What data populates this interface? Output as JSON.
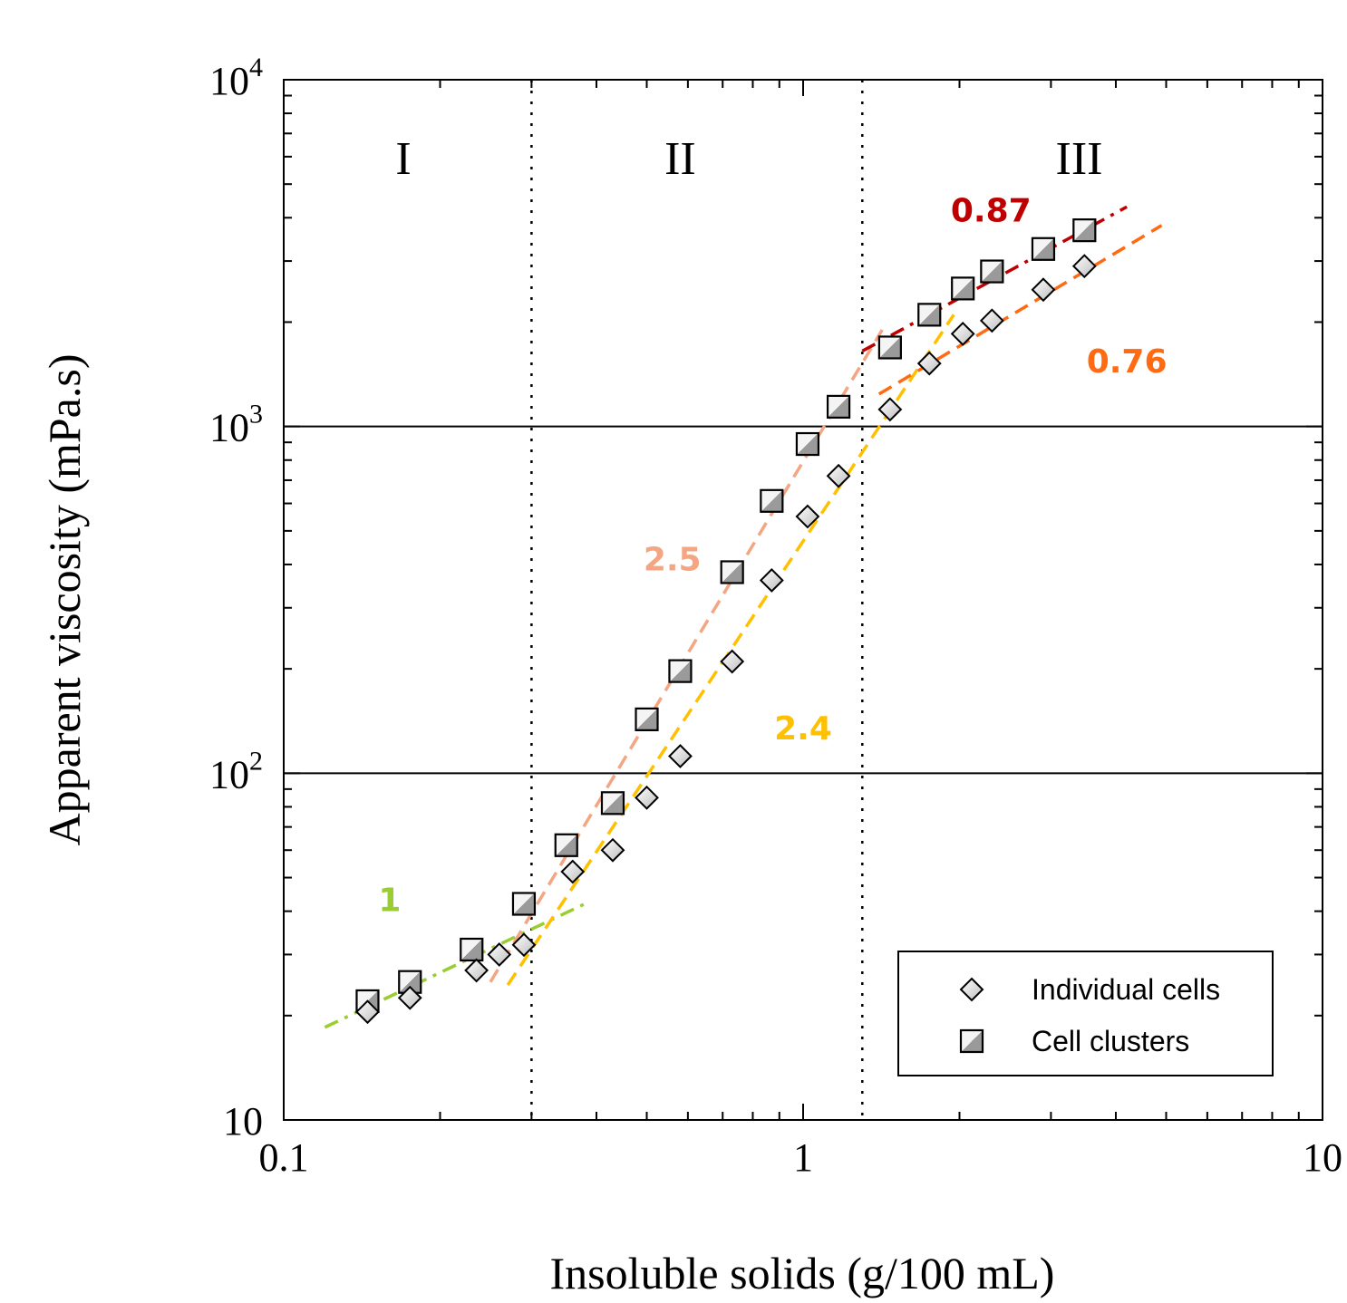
{
  "chart_data": {
    "type": "scatter",
    "x_scale": "log",
    "y_scale": "log",
    "xlim": [
      0.1,
      10
    ],
    "ylim": [
      10,
      10000
    ],
    "xlabel": "Insoluble solids (g/100 mL)",
    "ylabel": "Apparent viscosity (mPa.s)",
    "x_ticks": [
      {
        "value": 0.1,
        "label": "0.1"
      },
      {
        "value": 1,
        "label": "1"
      },
      {
        "value": 10,
        "label": "10"
      }
    ],
    "y_ticks": [
      {
        "value": 10,
        "label": "10",
        "exp": ""
      },
      {
        "value": 100,
        "label": "10",
        "exp": "2"
      },
      {
        "value": 1000,
        "label": "10",
        "exp": "3"
      },
      {
        "value": 10000,
        "label": "10",
        "exp": "4"
      }
    ],
    "gridlines_y": [
      100,
      1000
    ],
    "region_boundaries_x": [
      0.3,
      1.3
    ],
    "regions": [
      {
        "label": "I",
        "x": 0.17
      },
      {
        "label": "II",
        "x": 0.58
      },
      {
        "label": "III",
        "x": 3.4
      }
    ],
    "legend_position": "bottom-right",
    "series": [
      {
        "name": "Individual cells",
        "marker": "diamond",
        "points": [
          [
            0.145,
            20.5
          ],
          [
            0.175,
            22.5
          ],
          [
            0.235,
            27
          ],
          [
            0.26,
            30
          ],
          [
            0.29,
            32
          ],
          [
            0.36,
            52
          ],
          [
            0.43,
            60
          ],
          [
            0.5,
            85
          ],
          [
            0.58,
            112
          ],
          [
            0.73,
            210
          ],
          [
            0.87,
            360
          ],
          [
            1.02,
            550
          ],
          [
            1.17,
            720
          ],
          [
            1.47,
            1120
          ],
          [
            1.75,
            1520
          ],
          [
            2.03,
            1850
          ],
          [
            2.31,
            2020
          ],
          [
            2.9,
            2480
          ],
          [
            3.48,
            2900
          ]
        ]
      },
      {
        "name": "Cell clusters",
        "marker": "square",
        "points": [
          [
            0.145,
            22
          ],
          [
            0.175,
            25
          ],
          [
            0.23,
            31
          ],
          [
            0.29,
            42
          ],
          [
            0.35,
            62
          ],
          [
            0.43,
            82
          ],
          [
            0.5,
            143
          ],
          [
            0.58,
            197
          ],
          [
            0.73,
            380
          ],
          [
            0.87,
            610
          ],
          [
            1.02,
            890
          ],
          [
            1.17,
            1140
          ],
          [
            1.47,
            1690
          ],
          [
            1.75,
            2100
          ],
          [
            2.03,
            2500
          ],
          [
            2.31,
            2800
          ],
          [
            2.9,
            3250
          ],
          [
            3.48,
            3680
          ]
        ]
      }
    ],
    "fit_lines": [
      {
        "label": "1",
        "color": "#9ACD32",
        "from": [
          0.12,
          18.5
        ],
        "to": [
          0.38,
          42
        ],
        "label_at": [
          0.16,
          40
        ],
        "dash": "dash-dot"
      },
      {
        "label": "2.5",
        "color": "#F4A582",
        "from": [
          0.25,
          25
        ],
        "to": [
          1.42,
          1900
        ],
        "label_at": [
          0.56,
          385
        ],
        "dash": "dash"
      },
      {
        "label": "2.4",
        "color": "#FFC000",
        "from": [
          0.27,
          24.5
        ],
        "to": [
          1.95,
          2100
        ],
        "label_at": [
          1.0,
          125
        ],
        "dash": "dash"
      },
      {
        "label": "0.87",
        "color": "#C00000",
        "from": [
          1.3,
          1650
        ],
        "to": [
          4.2,
          4300
        ],
        "label_at": [
          2.3,
          3900
        ],
        "dash": "dash-dot"
      },
      {
        "label": "0.76",
        "color": "#FF6A13",
        "from": [
          1.4,
          1240
        ],
        "to": [
          4.9,
          3800
        ],
        "label_at": [
          4.2,
          1430
        ],
        "dash": "dash"
      }
    ],
    "legend": [
      {
        "marker": "diamond",
        "label": "Individual cells"
      },
      {
        "marker": "square",
        "label": "Cell clusters"
      }
    ]
  }
}
